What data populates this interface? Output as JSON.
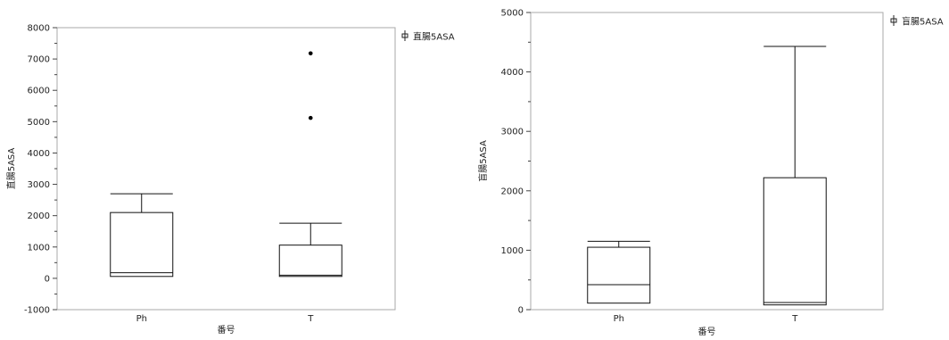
{
  "chart_data": [
    {
      "type": "box",
      "title": "",
      "xlabel": "番号",
      "ylabel": "直腸5ASA",
      "legend": "直腸5ASA",
      "legend_position": "top-right",
      "grid": false,
      "ylim": [
        -1000,
        8000
      ],
      "yticks": [
        -1000,
        0,
        1000,
        2000,
        3000,
        4000,
        5000,
        6000,
        7000,
        8000
      ],
      "categories": [
        "Ph",
        "T"
      ],
      "boxes": [
        {
          "category": "Ph",
          "whisker_low": 60,
          "q1": 60,
          "median": 180,
          "q3": 2100,
          "whisker_high": 2700,
          "outliers": []
        },
        {
          "category": "T",
          "whisker_low": 60,
          "q1": 60,
          "median": 100,
          "q3": 1060,
          "whisker_high": 1760,
          "outliers": [
            5120,
            7180
          ]
        }
      ]
    },
    {
      "type": "box",
      "title": "",
      "xlabel": "番号",
      "ylabel": "盲腸5ASA",
      "legend": "盲腸5ASA",
      "legend_position": "top-right",
      "grid": false,
      "ylim": [
        0,
        5000
      ],
      "yticks": [
        0,
        1000,
        2000,
        3000,
        4000,
        5000
      ],
      "categories": [
        "Ph",
        "T"
      ],
      "boxes": [
        {
          "category": "Ph",
          "whisker_low": 110,
          "q1": 110,
          "median": 420,
          "q3": 1050,
          "whisker_high": 1150,
          "outliers": []
        },
        {
          "category": "T",
          "whisker_low": 80,
          "q1": 80,
          "median": 120,
          "q3": 2220,
          "whisker_high": 4430,
          "outliers": []
        }
      ]
    }
  ]
}
